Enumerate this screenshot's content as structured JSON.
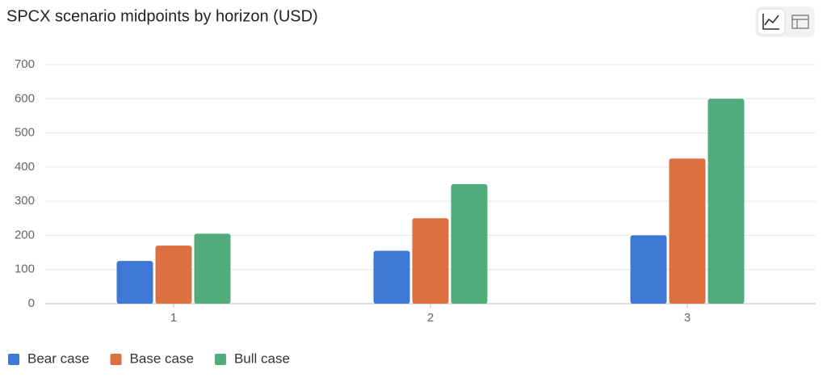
{
  "chart_data": {
    "type": "bar",
    "title": "SPCX scenario midpoints by horizon (USD)",
    "categories": [
      "1",
      "2",
      "3"
    ],
    "series": [
      {
        "name": "Bear case",
        "color": "#3f77d4",
        "values": [
          125,
          155,
          200
        ]
      },
      {
        "name": "Base case",
        "color": "#dc7041",
        "values": [
          170,
          250,
          425
        ]
      },
      {
        "name": "Bull case",
        "color": "#52ab7b",
        "values": [
          205,
          350,
          600
        ]
      }
    ],
    "ylim": [
      0,
      700
    ],
    "yticks": [
      0,
      100,
      200,
      300,
      400,
      500,
      600,
      700
    ],
    "grid": true,
    "legend": "bottom"
  }
}
